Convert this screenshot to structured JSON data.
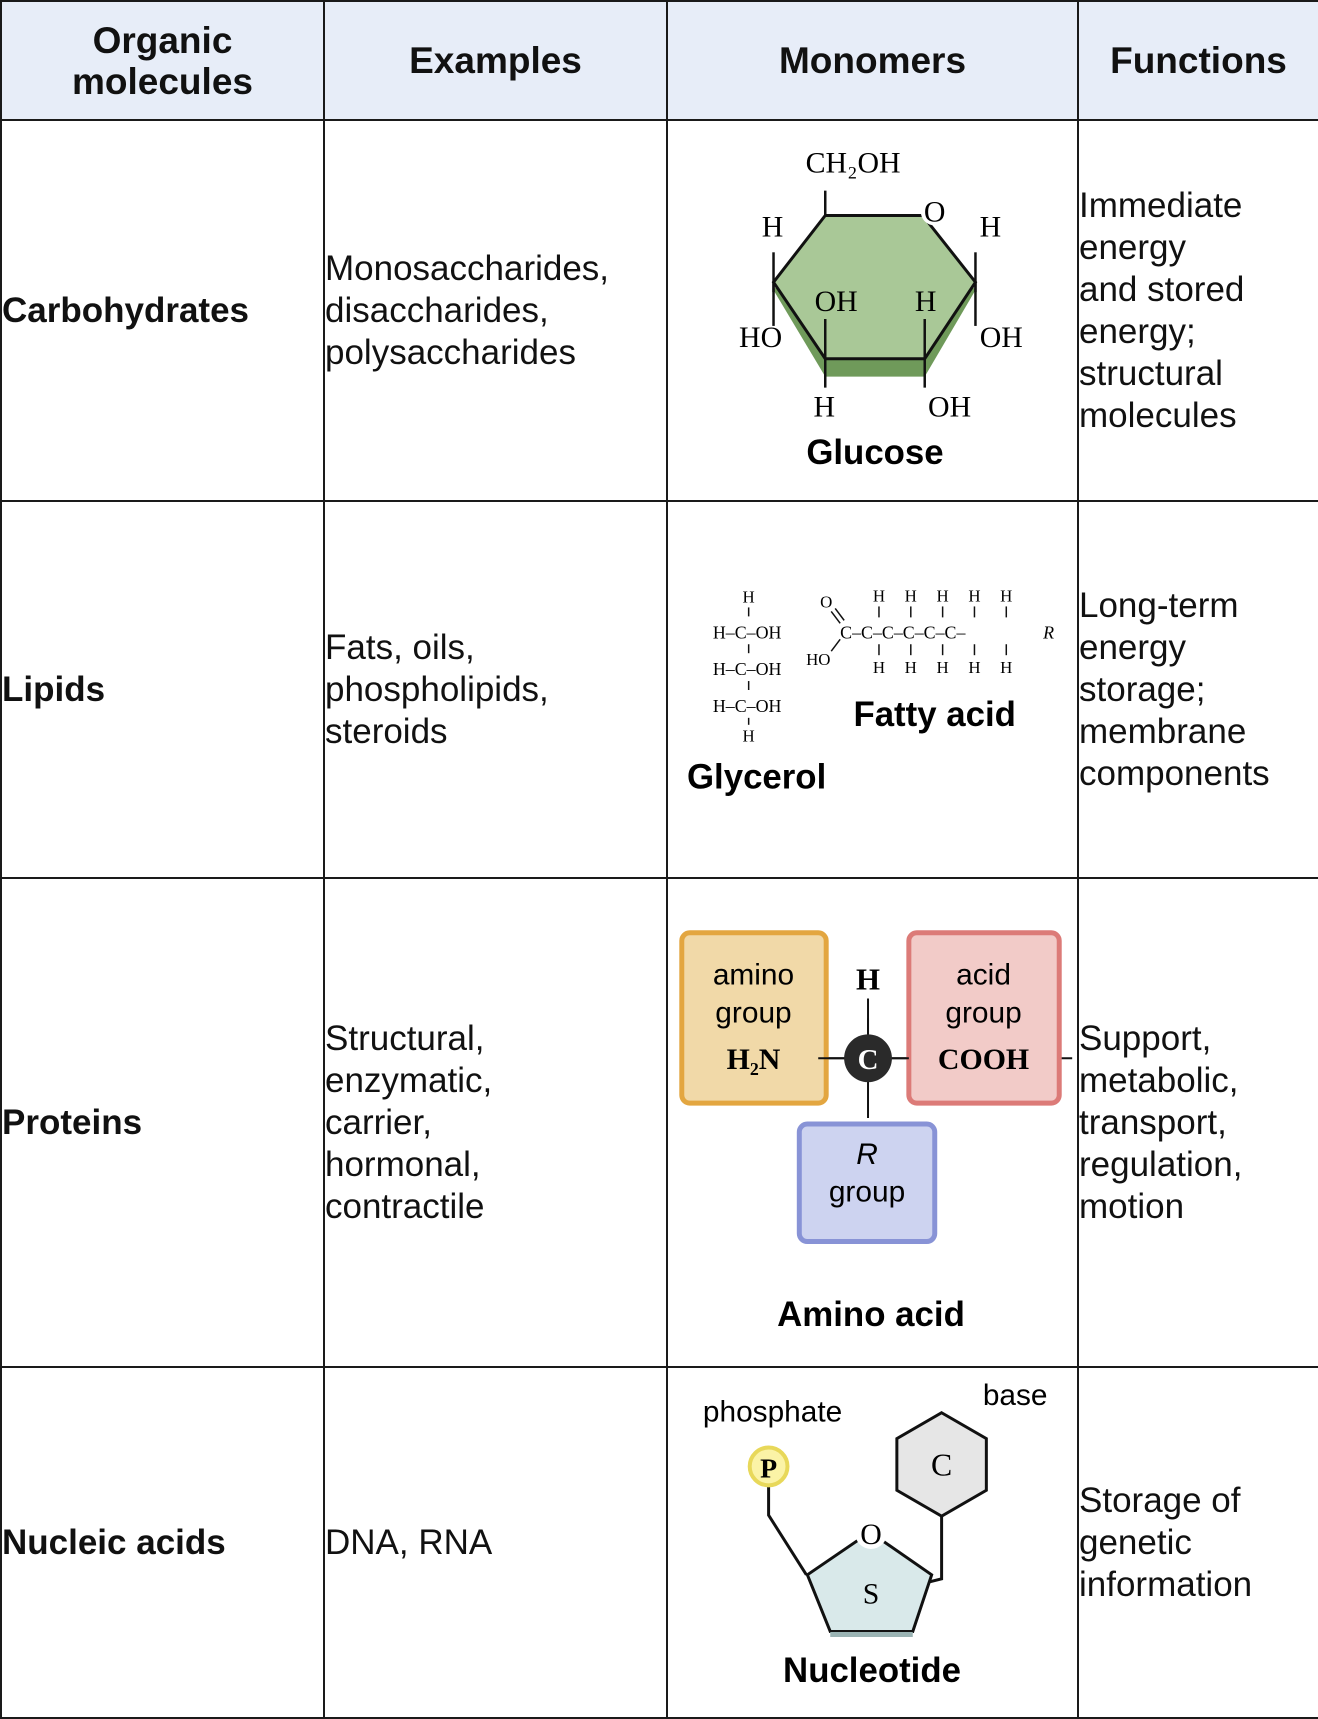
{
  "header": {
    "col1_line1": "Organic",
    "col1_line2": "molecules",
    "col2": "Examples",
    "col3": "Monomers",
    "col4": "Functions"
  },
  "rows": [
    {
      "category": "Carbohydrates",
      "examples": [
        "Monosaccharides,",
        "disaccharides,",
        "polysaccharides"
      ],
      "functions": [
        "Immediate",
        "energy",
        "and stored",
        "energy;",
        "structural",
        "molecules"
      ],
      "monomer": {
        "caption": "Glucose",
        "labels": {
          "ch2oh": "CH₂OH",
          "o": "O",
          "h_top_left": "H",
          "h_top_right": "H",
          "oh_inner": "OH",
          "h_inner": "H",
          "ho_left": "HO",
          "oh_right": "OH",
          "h_bottom": "H",
          "oh_bottom": "OH"
        },
        "color": "#9bbf86"
      }
    },
    {
      "category": "Lipids",
      "examples": [
        "Fats, oils,",
        "phospholipids,",
        "steroids"
      ],
      "functions": [
        "Long-term",
        "energy",
        "storage;",
        "membrane",
        "components"
      ],
      "monomer": {
        "caption_glycerol": "Glycerol",
        "caption_fatty": "Fatty acid",
        "glycerol": {
          "h_top": "H",
          "row1": "H–C–OH",
          "row2": "H–C–OH",
          "row3": "H–C–OH",
          "h_bottom": "H"
        },
        "fatty": {
          "o": "O",
          "ho": "HO",
          "chain": "C–C–C–C–C–C–",
          "r": "R",
          "h": "H"
        }
      }
    },
    {
      "category": "Proteins",
      "examples": [
        "Structural,",
        "enzymatic,",
        "carrier,",
        "hormonal,",
        "contractile"
      ],
      "functions": [
        "Support,",
        "metabolic,",
        "transport,",
        "regulation,",
        "motion"
      ],
      "monomer": {
        "caption": "Amino acid",
        "amino_line1": "amino",
        "amino_line2": "group",
        "amino_formula": "H₂N",
        "acid_line1": "acid",
        "acid_line2": "group",
        "acid_formula": "COOH",
        "h": "H",
        "c": "C",
        "r_line1": "R",
        "r_line2": "group",
        "colors": {
          "amino": "#f1d9a8",
          "acid": "#f2cbc8",
          "r": "#cdd3f0"
        }
      }
    },
    {
      "category": "Nucleic acids",
      "examples": [
        "DNA, RNA"
      ],
      "functions": [
        "Storage of",
        "genetic",
        "information"
      ],
      "monomer": {
        "caption": "Nucleotide",
        "phosphate_label": "phosphate",
        "p": "P",
        "base_label": "base",
        "c": "C",
        "o": "O",
        "s": "S",
        "colors": {
          "phosphate": "#fbf3a6",
          "base": "#e6e6e6",
          "sugar": "#d9e9ea"
        }
      }
    }
  ]
}
